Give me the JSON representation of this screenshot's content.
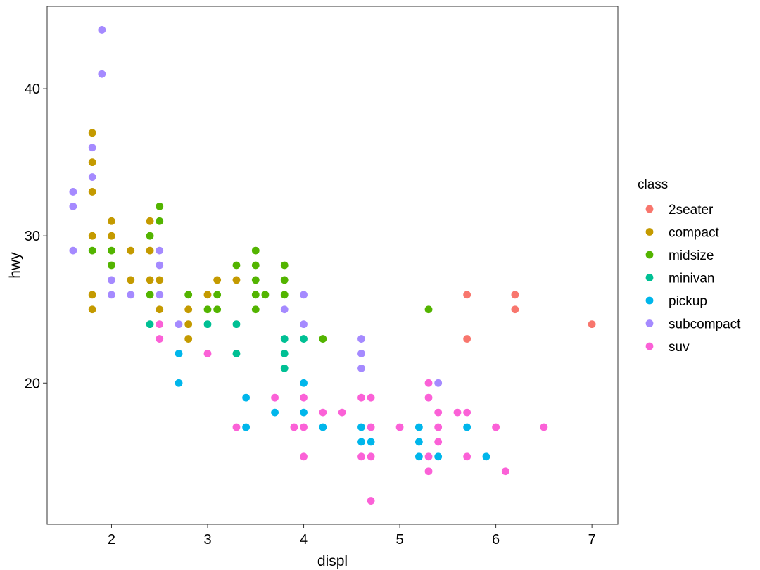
{
  "chart_data": {
    "type": "scatter",
    "title": "",
    "xlabel": "displ",
    "ylabel": "hwy",
    "xlim": [
      1.33,
      7.27
    ],
    "ylim": [
      10.4,
      45.6
    ],
    "x_ticks": [
      2,
      3,
      4,
      5,
      6,
      7
    ],
    "y_ticks": [
      20,
      30,
      40
    ],
    "grid": false,
    "legend": {
      "title": "class",
      "placement": "right",
      "entries": [
        "2seater",
        "compact",
        "midsize",
        "minivan",
        "pickup",
        "subcompact",
        "suv"
      ]
    },
    "series": [
      {
        "name": "2seater",
        "color": "#F8766D",
        "points": [
          [
            5.7,
            26
          ],
          [
            5.7,
            23
          ],
          [
            6.2,
            26
          ],
          [
            6.2,
            25
          ],
          [
            7.0,
            24
          ]
        ]
      },
      {
        "name": "compact",
        "color": "#C49A00",
        "points": [
          [
            1.8,
            37
          ],
          [
            1.8,
            35
          ],
          [
            1.8,
            33
          ],
          [
            1.8,
            30
          ],
          [
            1.8,
            26
          ],
          [
            1.8,
            25
          ],
          [
            2.0,
            31
          ],
          [
            2.0,
            30
          ],
          [
            2.2,
            29
          ],
          [
            2.2,
            27
          ],
          [
            2.4,
            31
          ],
          [
            2.4,
            29
          ],
          [
            2.4,
            27
          ],
          [
            2.5,
            27
          ],
          [
            2.5,
            25
          ],
          [
            2.8,
            25
          ],
          [
            2.8,
            24
          ],
          [
            2.8,
            23
          ],
          [
            3.0,
            26
          ],
          [
            3.1,
            27
          ],
          [
            3.3,
            27
          ]
        ]
      },
      {
        "name": "midsize",
        "color": "#53B400",
        "points": [
          [
            1.8,
            29
          ],
          [
            2.0,
            29
          ],
          [
            2.0,
            28
          ],
          [
            2.4,
            30
          ],
          [
            2.4,
            26
          ],
          [
            2.5,
            32
          ],
          [
            2.5,
            31
          ],
          [
            2.8,
            26
          ],
          [
            3.0,
            25
          ],
          [
            3.1,
            26
          ],
          [
            3.1,
            25
          ],
          [
            3.3,
            28
          ],
          [
            3.5,
            29
          ],
          [
            3.5,
            28
          ],
          [
            3.5,
            27
          ],
          [
            3.5,
            26
          ],
          [
            3.5,
            25
          ],
          [
            3.6,
            26
          ],
          [
            3.8,
            28
          ],
          [
            3.8,
            27
          ],
          [
            3.8,
            26
          ],
          [
            4.2,
            23
          ],
          [
            5.3,
            25
          ]
        ]
      },
      {
        "name": "minivan",
        "color": "#00C094",
        "points": [
          [
            2.4,
            24
          ],
          [
            3.0,
            24
          ],
          [
            3.3,
            24
          ],
          [
            3.3,
            22
          ],
          [
            3.8,
            23
          ],
          [
            3.8,
            22
          ],
          [
            3.8,
            21
          ],
          [
            4.0,
            23
          ]
        ]
      },
      {
        "name": "pickup",
        "color": "#00B6EB",
        "points": [
          [
            2.7,
            22
          ],
          [
            2.7,
            20
          ],
          [
            3.4,
            19
          ],
          [
            3.4,
            17
          ],
          [
            3.7,
            18
          ],
          [
            4.0,
            20
          ],
          [
            4.0,
            18
          ],
          [
            4.2,
            17
          ],
          [
            4.6,
            17
          ],
          [
            4.6,
            16
          ],
          [
            4.7,
            16
          ],
          [
            5.2,
            17
          ],
          [
            5.2,
            16
          ],
          [
            5.2,
            15
          ],
          [
            5.4,
            15
          ],
          [
            5.7,
            17
          ],
          [
            5.9,
            15
          ]
        ]
      },
      {
        "name": "subcompact",
        "color": "#A58AFF",
        "points": [
          [
            1.6,
            33
          ],
          [
            1.6,
            32
          ],
          [
            1.6,
            29
          ],
          [
            1.8,
            36
          ],
          [
            1.8,
            34
          ],
          [
            1.9,
            44
          ],
          [
            1.9,
            41
          ],
          [
            2.0,
            27
          ],
          [
            2.0,
            26
          ],
          [
            2.2,
            26
          ],
          [
            2.5,
            29
          ],
          [
            2.5,
            28
          ],
          [
            2.5,
            26
          ],
          [
            2.7,
            24
          ],
          [
            3.8,
            25
          ],
          [
            4.0,
            26
          ],
          [
            4.0,
            24
          ],
          [
            4.6,
            23
          ],
          [
            4.6,
            22
          ],
          [
            4.6,
            21
          ],
          [
            5.4,
            20
          ]
        ]
      },
      {
        "name": "suv",
        "color": "#FB61D7",
        "points": [
          [
            2.5,
            24
          ],
          [
            2.5,
            23
          ],
          [
            3.0,
            22
          ],
          [
            3.3,
            17
          ],
          [
            3.7,
            19
          ],
          [
            3.9,
            17
          ],
          [
            4.0,
            19
          ],
          [
            4.0,
            17
          ],
          [
            4.0,
            15
          ],
          [
            4.2,
            18
          ],
          [
            4.4,
            18
          ],
          [
            4.6,
            19
          ],
          [
            4.6,
            15
          ],
          [
            4.7,
            19
          ],
          [
            4.7,
            17
          ],
          [
            4.7,
            15
          ],
          [
            4.7,
            12
          ],
          [
            5.0,
            17
          ],
          [
            5.3,
            20
          ],
          [
            5.3,
            19
          ],
          [
            5.3,
            15
          ],
          [
            5.3,
            14
          ],
          [
            5.4,
            18
          ],
          [
            5.4,
            17
          ],
          [
            5.4,
            16
          ],
          [
            5.6,
            18
          ],
          [
            5.7,
            18
          ],
          [
            5.7,
            15
          ],
          [
            6.0,
            17
          ],
          [
            6.1,
            14
          ],
          [
            6.5,
            17
          ]
        ]
      }
    ]
  }
}
